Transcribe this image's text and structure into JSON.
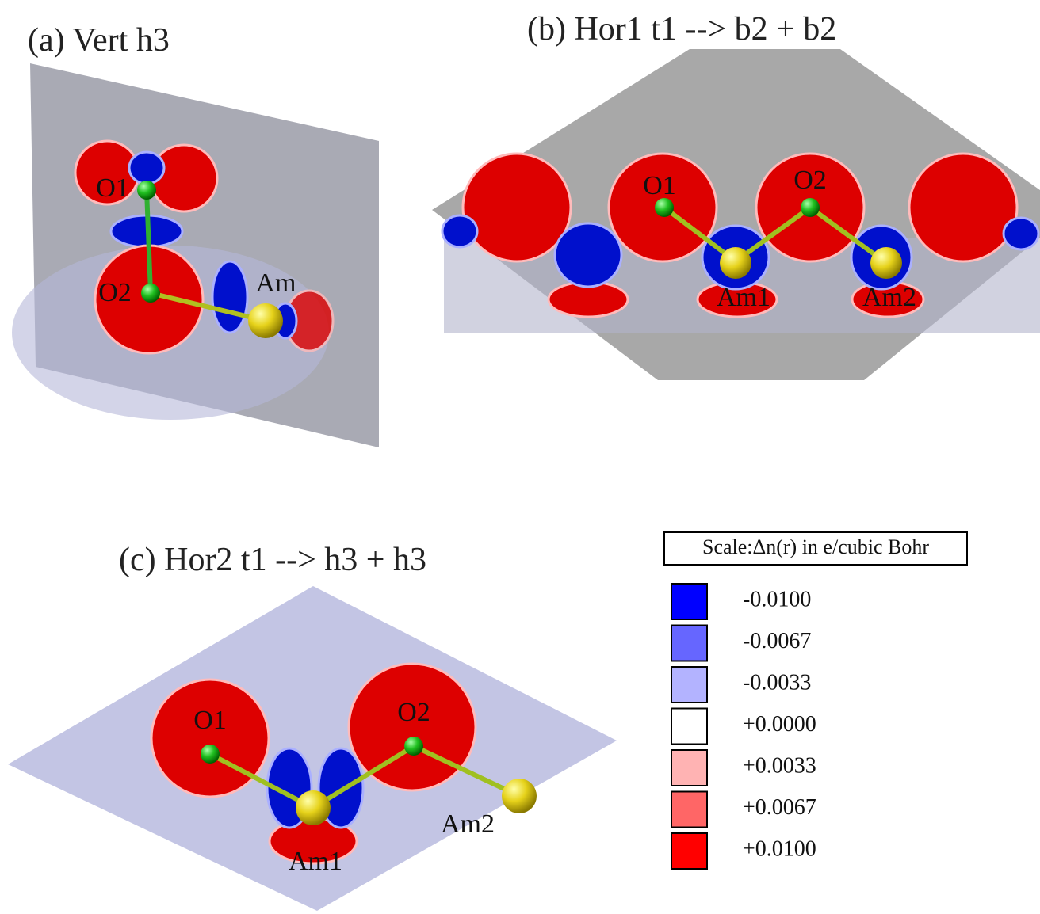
{
  "panels": [
    {
      "title": "(a) Vert h3",
      "atoms": [
        "O1",
        "O2",
        "Am"
      ]
    },
    {
      "title": "(b) Hor1 t1 --> b2 + b2",
      "atoms": [
        "O1",
        "O2",
        "Am1",
        "Am2"
      ]
    },
    {
      "title": "(c) Hor2 t1 --> h3 + h3",
      "atoms": [
        "O1",
        "O2",
        "Am1",
        "Am2"
      ]
    }
  ],
  "legend": {
    "title": "Scale:Δn(r) in e/cubic Bohr",
    "entries": [
      {
        "label": "-0.0100",
        "color": "#0000ff"
      },
      {
        "label": "-0.0067",
        "color": "#6666ff"
      },
      {
        "label": "-0.0033",
        "color": "#b3b3ff"
      },
      {
        "label": "+0.0000",
        "color": "#ffffff"
      },
      {
        "label": "+0.0033",
        "color": "#ffb3b3"
      },
      {
        "label": "+0.0067",
        "color": "#ff6666"
      },
      {
        "label": "+0.0100",
        "color": "#ff0000"
      }
    ]
  }
}
